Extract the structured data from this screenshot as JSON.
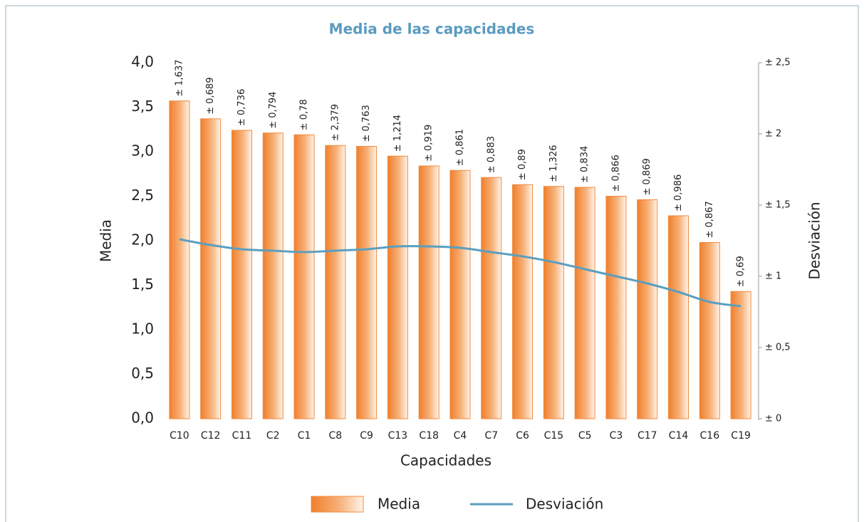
{
  "chart_data": {
    "type": "bar_line",
    "title": "Media de las capacidades",
    "x_label": "Capacidades",
    "y_label": "Media",
    "y2_label": "Desviación",
    "categories": [
      "C10",
      "C12",
      "C11",
      "C2",
      "C1",
      "C8",
      "C9",
      "C13",
      "C18",
      "C4",
      "C7",
      "C6",
      "C15",
      "C5",
      "C3",
      "C17",
      "C14",
      "C16",
      "C19"
    ],
    "series": [
      {
        "name": "Media",
        "type": "bar",
        "color": "#f08a3c",
        "values": [
          3.57,
          3.37,
          3.24,
          3.21,
          3.19,
          3.07,
          3.06,
          2.95,
          2.84,
          2.79,
          2.71,
          2.63,
          2.61,
          2.6,
          2.5,
          2.46,
          2.28,
          1.98,
          1.43
        ]
      },
      {
        "name": "Desviación",
        "type": "line",
        "axis": "y2",
        "color": "#5a9fc0",
        "values": [
          1.26,
          1.22,
          1.19,
          1.18,
          1.17,
          1.18,
          1.19,
          1.21,
          1.21,
          1.2,
          1.17,
          1.14,
          1.1,
          1.05,
          1.0,
          0.95,
          0.89,
          0.82,
          0.79
        ]
      }
    ],
    "annotations": [
      "± 1,637",
      "± 0,689",
      "± 0,736",
      "± 0,794",
      "± 0,78",
      "± 2,379",
      "± 0,763",
      "± 1,214",
      "± 0,919",
      "± 0,861",
      "± 0,883",
      "± 0,89",
      "± 1,326",
      "± 0,834",
      "± 0,866",
      "± 0,869",
      "± 0,986",
      "± 0,867",
      "± 0,69"
    ],
    "ylim": [
      0,
      4
    ],
    "yticks": [
      {
        "value": 0,
        "label": "0,0"
      },
      {
        "value": 0.5,
        "label": "0,5"
      },
      {
        "value": 1,
        "label": "1,0"
      },
      {
        "value": 1.5,
        "label": "1,5"
      },
      {
        "value": 2,
        "label": "2,0"
      },
      {
        "value": 2.5,
        "label": "2,5"
      },
      {
        "value": 3,
        "label": "3,0"
      },
      {
        "value": 3.5,
        "label": "3,5"
      },
      {
        "value": 4,
        "label": "4,0"
      }
    ],
    "y2lim": [
      0,
      2.5
    ],
    "y2ticks": [
      {
        "value": 0,
        "label": "± 0"
      },
      {
        "value": 0.5,
        "label": "± 0,5"
      },
      {
        "value": 1,
        "label": "± 1"
      },
      {
        "value": 1.5,
        "label": "± 1,5"
      },
      {
        "value": 2,
        "label": "± 2"
      },
      {
        "value": 2.5,
        "label": "± 2,5"
      }
    ],
    "grid": false
  }
}
